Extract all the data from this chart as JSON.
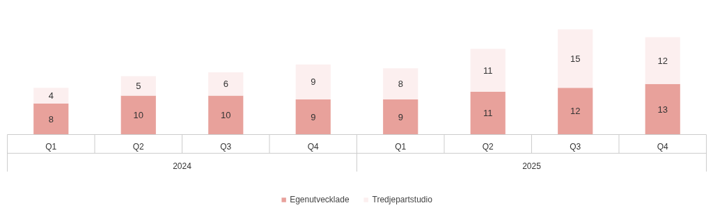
{
  "chart_data": {
    "type": "bar",
    "stacked": true,
    "data_labels": true,
    "legend": "bottom",
    "grid": false,
    "categories": [
      "Q1",
      "Q2",
      "Q3",
      "Q4",
      "Q1",
      "Q2",
      "Q3",
      "Q4"
    ],
    "annotations": [
      "2024",
      "2025"
    ],
    "series": [
      {
        "name": "Egenutvecklade",
        "color": "#e8a19b",
        "values": [
          8,
          10,
          10,
          9,
          9,
          11,
          12,
          13
        ]
      },
      {
        "name": "Tredjepartstudio",
        "color": "#fcefef",
        "values": [
          4,
          5,
          6,
          9,
          8,
          11,
          15,
          12
        ]
      }
    ]
  }
}
